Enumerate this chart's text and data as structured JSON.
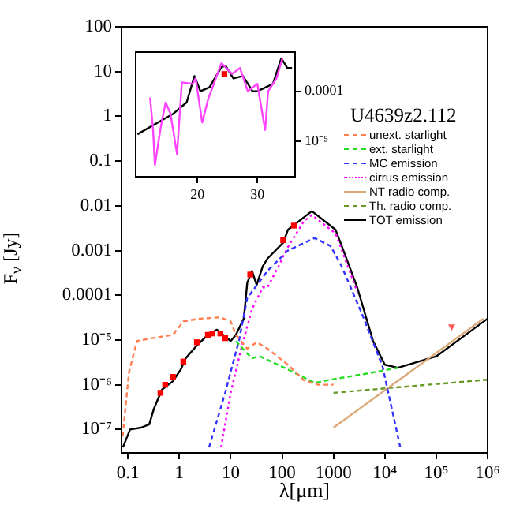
{
  "chart_data": [
    {
      "type": "line",
      "xlabel": "λ[μm]",
      "ylabel": "F$_{ν}$ [Jy]",
      "annotations": [
        "U4639z2.112"
      ],
      "legend": "top right",
      "log": "xy",
      "xlim": [
        0.075,
        1000000
      ],
      "ylim": [
        3.2e-08,
        100
      ],
      "xticks": [
        0.1,
        1,
        10,
        100,
        1000,
        {
          "value": 10000,
          "label": "10⁴"
        },
        {
          "value": 100000,
          "label": "10⁵"
        },
        {
          "value": 1000000,
          "label": "10⁶"
        }
      ],
      "yticks": [
        {
          "value": 1e-07,
          "label": "10⁻⁷"
        },
        {
          "value": 1e-06,
          "label": "10⁻⁶"
        },
        {
          "value": 1e-05,
          "label": "10⁻⁵"
        },
        0.0001,
        0.001,
        0.01,
        0.1,
        1,
        10,
        100
      ],
      "series": [
        {
          "name": "unext. starlight",
          "color": "#ff7f50",
          "line_style": "dashed",
          "x": [
            0.079,
            0.105,
            0.15,
            0.3,
            0.75,
            1.2,
            2.5,
            6.3,
            10,
            12.6,
            21,
            32,
            52,
            130,
            265,
            500,
            1000
          ],
          "values": [
            7e-08,
            1.9e-06,
            9.5e-06,
            1.1e-05,
            1.3e-05,
            2.6e-05,
            3e-05,
            3.2e-05,
            2.6e-05,
            1.3e-05,
            6.4e-06,
            8.9e-06,
            6.4e-06,
            2.8e-06,
            1.26e-06,
            1e-06,
            1e-06
          ]
        },
        {
          "name": "ext. starlight",
          "color": "#22dd22",
          "line_style": "dashed",
          "x": [
            12.6,
            21,
            26,
            36,
            130,
            430,
            880,
            3600,
            18000
          ],
          "values": [
            9.5e-06,
            5e-06,
            3.9e-06,
            4.4e-06,
            2.2e-06,
            1.1e-06,
            1.3e-06,
            1.7e-06,
            2.4e-06
          ]
        },
        {
          "name": "MC emission",
          "color": "#3333ff",
          "line_style": "dashed",
          "x": [
            3.8,
            7.8,
            14.6,
            21,
            52,
            130,
            430,
            880,
            1450,
            3600,
            9000,
            20000
          ],
          "values": [
            4e-08,
            6.6e-07,
            1e-05,
            8.7e-05,
            0.00035,
            0.001,
            0.0019,
            0.00126,
            0.00044,
            3.8e-05,
            2.6e-06,
            4e-08
          ]
        },
        {
          "name": "cirrus emission",
          "color": "#ff00ff",
          "line_style": "dotted",
          "x": [
            6.5,
            10,
            15.7,
            26,
            42,
            52,
            85,
            130,
            265,
            380,
            1100,
            2900
          ],
          "values": [
            4e-08,
            6.6e-07,
            5.9e-06,
            4.9e-05,
            0.00015,
            0.00015,
            0.00044,
            0.0012,
            0.0045,
            0.0062,
            0.0024,
            0.00012
          ]
        },
        {
          "name": "NT radio comp.",
          "color": "#dba878",
          "line_style": "solid",
          "x": [
            1000,
            830000
          ],
          "values": [
            1.1e-07,
            3e-05
          ]
        },
        {
          "name": "Th. radio comp.",
          "color": "#669922",
          "line_style": "dashed",
          "x": [
            1000,
            1000000
          ],
          "values": [
            6.6e-07,
            1.3e-06
          ]
        },
        {
          "name": "TOT emission",
          "color": "#000000",
          "line_style": "solid",
          "x": [
            0.08,
            0.11,
            0.18,
            0.26,
            0.32,
            0.46,
            0.75,
            1.07,
            1.33,
            2.2,
            3.6,
            5.4,
            10,
            12.6,
            18,
            21,
            26,
            32,
            42,
            52,
            105,
            130,
            380,
            1100,
            1450,
            2900,
            5900,
            10000,
            18000,
            100000,
            1000000
          ],
          "values": [
            4e-08,
            1e-07,
            1.1e-07,
            1.3e-07,
            2.9e-07,
            7.8e-07,
            1.2e-06,
            2.2e-06,
            3.9e-06,
            7.6e-06,
            1.3e-05,
            1.7e-05,
            9.5e-06,
            1.3e-05,
            3e-05,
            0.00019,
            0.00035,
            0.00017,
            0.00044,
            0.00066,
            0.0015,
            0.0029,
            0.0076,
            0.0029,
            0.00126,
            0.00015,
            9.5e-06,
            2.8e-06,
            2.4e-06,
            4.3e-06,
            3e-05
          ]
        },
        {
          "type": "scatter",
          "marker": "square",
          "color": "#ff0000",
          "x": [
            0.43,
            0.53,
            0.75,
            1.2,
            2.2,
            3.6,
            4.4,
            6.3,
            7.8,
            24,
            105,
            170
          ],
          "values": [
            6.6e-07,
            1e-06,
            1.5e-06,
            3.3e-06,
            8.9e-06,
            1.3e-05,
            1.4e-05,
            1.4e-05,
            1.1e-05,
            0.00029,
            0.0017,
            0.0036
          ]
        },
        {
          "type": "scatter",
          "marker": "triangle",
          "color": "#ff5555",
          "x": [
            200000
          ],
          "values": [
            2e-05
          ]
        }
      ]
    },
    {
      "type": "line",
      "log": "y",
      "xlim": [
        9.7,
        36.3
      ],
      "ylim": [
        2e-06,
        0.0006
      ],
      "xticks": [
        20,
        30
      ],
      "yticks": [
        {
          "value": 1e-05,
          "label": "10⁻⁵"
        },
        0.0001
      ],
      "series": [
        {
          "color": "#ff44ff",
          "x": [
            12.1,
            12.6,
            12.9,
            13.9,
            14.7,
            15.5,
            16.6,
            17.4,
            19.2,
            19.7,
            20.8,
            21.8,
            24,
            25.8,
            27.1,
            28.4,
            30,
            31.3,
            31.8,
            33.2,
            33.7,
            34.2
          ],
          "values": [
            7.5e-05,
            1.7e-05,
            3.4e-06,
            2e-05,
            6e-05,
            3.6e-05,
            5.6e-06,
            0.00015,
            0.00014,
            0.00018,
            2.4e-05,
            7e-05,
            0.00036,
            0.00022,
            0.00029,
            0.0001,
            0.00014,
            1.7e-05,
            0.0001,
            0.00018,
            0.00029,
            0.00045
          ]
        },
        {
          "color": "#000000",
          "x": [
            10,
            13.4,
            16,
            18.2,
            19.5,
            20.5,
            22,
            24,
            24.7,
            26,
            27.6,
            29.2,
            30,
            32.6,
            34,
            35,
            35.8
          ],
          "values": [
            1.4e-05,
            2.4e-05,
            3.6e-05,
            6e-05,
            0.0002,
            0.0001,
            0.00012,
            0.0003,
            0.00032,
            0.00018,
            0.0002,
            0.0001,
            0.0001,
            0.00014,
            0.00045,
            0.00029,
            0.00029
          ]
        },
        {
          "type": "scatter",
          "marker": "square",
          "color": "#ff0000",
          "x": [
            24.5
          ],
          "values": [
            0.00022
          ]
        }
      ]
    }
  ]
}
